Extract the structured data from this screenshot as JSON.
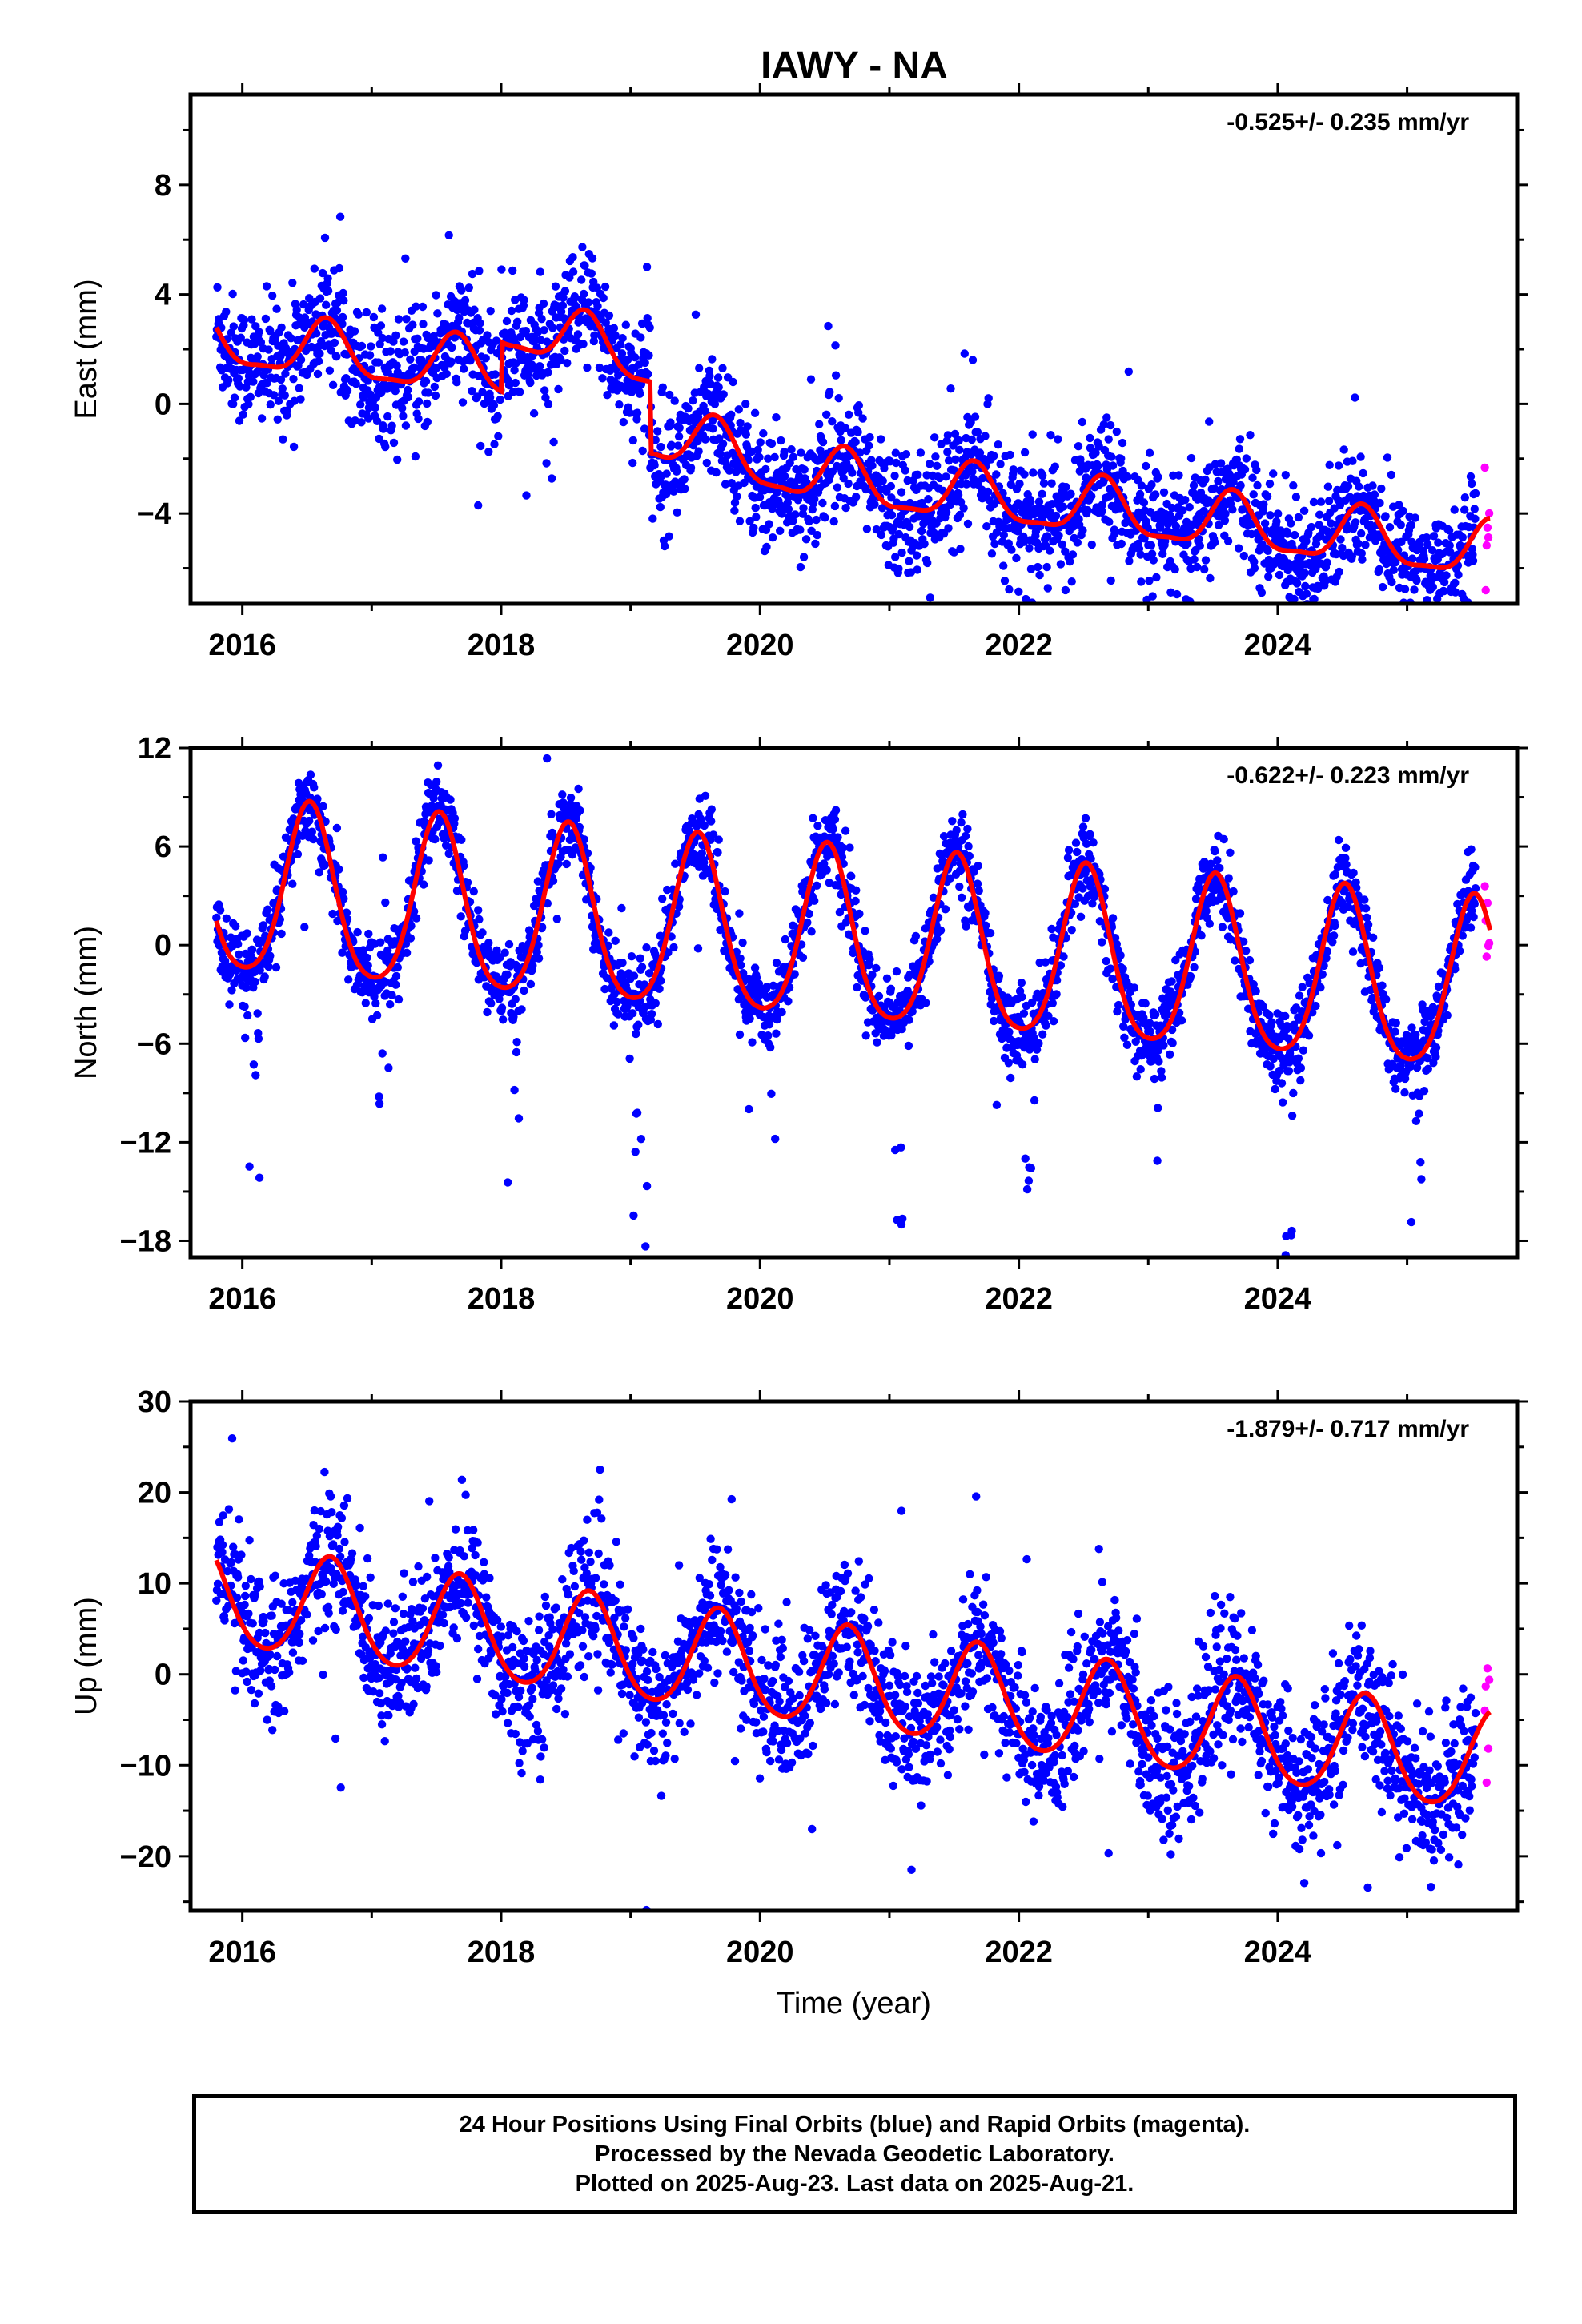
{
  "figure_title": "IAWY - NA",
  "colors": {
    "final_orbits": "#0000ff",
    "rapid_orbits": "#ff00ff",
    "model_fit": "#ff0000",
    "frame": "#000000"
  },
  "caption": {
    "line1": "24 Hour Positions Using Final Orbits (blue) and Rapid Orbits (magenta).",
    "line2": "Processed by the Nevada Geodetic Laboratory.",
    "line3": "Plotted on 2025-Aug-23. Last data on 2025-Aug-21."
  },
  "chart_data": [
    {
      "type": "scatter",
      "panel": "east",
      "title": "",
      "xlabel": "",
      "ylabel": "East (mm)",
      "rate_label": "-0.525+/- 0.235 mm/yr",
      "xlim": [
        2015.6,
        2025.85
      ],
      "ylim": [
        -7.3,
        11.3
      ],
      "xticks": [
        2016,
        2018,
        2020,
        2022,
        2024
      ],
      "yticks": [
        -4,
        0,
        4,
        8
      ],
      "grid": false,
      "data_start": 2015.8,
      "data_end": 2025.64,
      "rapid_start": 2025.53,
      "trend": {
        "value_at_start": 2.3,
        "rate_per_year": -0.525
      },
      "seasonal": {
        "annual_amplitude": 1.0,
        "annual_phase_peak": 0.65,
        "semiannual_amplitude": 0.3
      },
      "offsets": [
        {
          "epoch": 2018.0,
          "step": 1.8,
          "decay": 2.5
        },
        {
          "epoch": 2019.15,
          "step": -2.6
        }
      ],
      "scatter_sd": 1.1
    },
    {
      "type": "scatter",
      "panel": "north",
      "title": "",
      "xlabel": "",
      "ylabel": "North (mm)",
      "rate_label": "-0.622+/- 0.223 mm/yr",
      "xlim": [
        2015.6,
        2025.85
      ],
      "ylim": [
        -19,
        12
      ],
      "xticks": [
        2016,
        2018,
        2020,
        2022,
        2024
      ],
      "yticks": [
        -18,
        -12,
        -6,
        0,
        6,
        12
      ],
      "grid": false,
      "data_start": 2015.8,
      "data_end": 2025.64,
      "rapid_start": 2025.53,
      "trend": {
        "value_at_start": 3.2,
        "rate_per_year": -0.622
      },
      "seasonal": {
        "annual_amplitude": 5.2,
        "annual_phase_peak": 0.52,
        "semiannual_amplitude": 0.8
      },
      "offsets": [],
      "scatter_sd": 1.2,
      "winter_outliers": true
    },
    {
      "type": "scatter",
      "panel": "up",
      "title": "",
      "xlabel": "Time (year)",
      "ylabel": "Up (mm)",
      "rate_label": "-1.879+/- 0.717 mm/yr",
      "xlim": [
        2015.6,
        2025.85
      ],
      "ylim": [
        -26,
        30
      ],
      "xticks": [
        2016,
        2018,
        2020,
        2022,
        2024
      ],
      "yticks": [
        -20,
        -10,
        0,
        10,
        20,
        30
      ],
      "grid": false,
      "data_start": 2015.8,
      "data_end": 2025.64,
      "rapid_start": 2025.53,
      "trend": {
        "value_at_start": 8.5,
        "rate_per_year": -1.879
      },
      "seasonal": {
        "annual_amplitude": 5.5,
        "annual_phase_peak": 0.68,
        "semiannual_amplitude": 0.6
      },
      "offsets": [],
      "scatter_sd": 3.8
    }
  ]
}
